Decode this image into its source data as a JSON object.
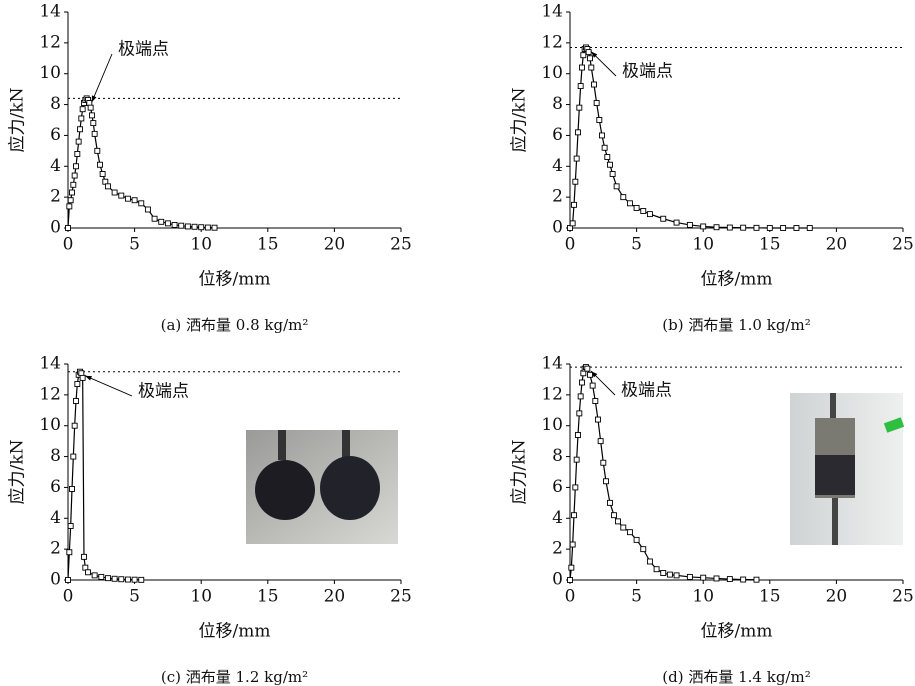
{
  "chart_data": [
    {
      "type": "line",
      "x_label": "位移/mm",
      "y_label": "应力/kN",
      "caption": "(a) 洒布量 0.8 kg/m²",
      "annotation": "极端点",
      "hline": 8.4,
      "color": "#000000",
      "x": [
        0,
        0.1,
        0.2,
        0.3,
        0.4,
        0.5,
        0.6,
        0.7,
        0.8,
        0.9,
        1.0,
        1.1,
        1.2,
        1.3,
        1.4,
        1.5,
        1.6,
        1.7,
        1.8,
        1.9,
        2.0,
        2.2,
        2.4,
        2.6,
        2.8,
        3.0,
        3.5,
        4,
        4.5,
        5,
        5.5,
        6,
        6.5,
        7,
        7.5,
        8,
        8.5,
        9,
        9.5,
        10,
        10.5,
        11
      ],
      "values": [
        0,
        1.4,
        1.8,
        2.3,
        2.8,
        3.4,
        4.0,
        4.8,
        5.6,
        6.4,
        7.1,
        7.7,
        8.1,
        8.3,
        8.4,
        8.3,
        8.1,
        7.8,
        7.3,
        6.8,
        6.1,
        5.0,
        4.1,
        3.5,
        3.0,
        2.7,
        2.3,
        2.1,
        1.9,
        1.8,
        1.6,
        1.2,
        0.6,
        0.4,
        0.3,
        0.2,
        0.15,
        0.1,
        0.08,
        0.05,
        0.03,
        0.02
      ],
      "xlim": [
        0,
        25
      ],
      "ylim": [
        0,
        14
      ],
      "xticks": [
        0,
        5,
        10,
        15,
        20,
        25
      ],
      "yticks": [
        0,
        2,
        4,
        6,
        8,
        10,
        12,
        14
      ]
    },
    {
      "type": "line",
      "x_label": "位移/mm",
      "y_label": "应力/kN",
      "caption": "(b) 洒布量 1.0 kg/m²",
      "annotation": "极端点",
      "hline": 11.7,
      "color": "#000000",
      "x": [
        0,
        0.2,
        0.3,
        0.4,
        0.5,
        0.6,
        0.7,
        0.8,
        0.9,
        1.0,
        1.1,
        1.2,
        1.3,
        1.4,
        1.5,
        1.6,
        1.8,
        2.0,
        2.2,
        2.4,
        2.6,
        2.8,
        3.0,
        3.2,
        3.5,
        4,
        4.5,
        5,
        5.5,
        6,
        7,
        8,
        9,
        10,
        11,
        12,
        13,
        14,
        15,
        16,
        17,
        18
      ],
      "values": [
        0,
        0.3,
        1.5,
        3.0,
        4.5,
        6.2,
        7.8,
        9.2,
        10.4,
        11.2,
        11.6,
        11.7,
        11.6,
        11.4,
        11.0,
        10.4,
        9.3,
        8.1,
        7.0,
        6.0,
        5.2,
        4.6,
        4.1,
        3.5,
        2.7,
        2.0,
        1.6,
        1.3,
        1.1,
        0.9,
        0.6,
        0.35,
        0.2,
        0.1,
        0.05,
        0.03,
        0.02,
        0.01,
        0,
        0,
        0,
        0
      ],
      "xlim": [
        0,
        25
      ],
      "ylim": [
        0,
        14
      ],
      "xticks": [
        0,
        5,
        10,
        15,
        20,
        25
      ],
      "yticks": [
        0,
        2,
        4,
        6,
        8,
        10,
        12,
        14
      ]
    },
    {
      "type": "line",
      "x_label": "位移/mm",
      "y_label": "应力/kN",
      "caption": "(c) 洒布量 1.2 kg/m²",
      "annotation": "极端点",
      "hline": 13.5,
      "color": "#000000",
      "x": [
        0,
        0.1,
        0.2,
        0.3,
        0.4,
        0.5,
        0.6,
        0.7,
        0.8,
        0.9,
        1.0,
        1.1,
        1.2,
        1.3,
        1.5,
        2,
        2.5,
        3,
        3.5,
        4,
        4.5,
        5,
        5.5
      ],
      "values": [
        0,
        1.8,
        3.5,
        5.9,
        8.0,
        10.0,
        11.6,
        12.7,
        13.3,
        13.5,
        13.4,
        13.1,
        1.5,
        0.8,
        0.5,
        0.3,
        0.2,
        0.12,
        0.08,
        0.05,
        0.03,
        0.02,
        0.01
      ],
      "xlim": [
        0,
        25
      ],
      "ylim": [
        0,
        14
      ],
      "xticks": [
        0,
        5,
        10,
        15,
        20,
        25
      ],
      "yticks": [
        0,
        2,
        4,
        6,
        8,
        10,
        12,
        14
      ]
    },
    {
      "type": "line",
      "x_label": "位移/mm",
      "y_label": "应力/kN",
      "caption": "(d) 洒布量 1.4 kg/m²",
      "annotation": "极端点",
      "hline": 13.8,
      "color": "#000000",
      "x": [
        0,
        0.1,
        0.2,
        0.3,
        0.4,
        0.5,
        0.6,
        0.7,
        0.8,
        0.9,
        1.0,
        1.1,
        1.2,
        1.3,
        1.5,
        1.7,
        1.9,
        2.1,
        2.3,
        2.5,
        2.7,
        3.0,
        3.3,
        3.6,
        4.0,
        4.5,
        5,
        5.5,
        6,
        6.5,
        7,
        7.5,
        8,
        9,
        10,
        11,
        12,
        13,
        14
      ],
      "values": [
        0,
        0.8,
        2.3,
        4.2,
        6.0,
        7.8,
        9.4,
        10.8,
        11.9,
        12.8,
        13.4,
        13.7,
        13.8,
        13.7,
        13.3,
        12.6,
        11.6,
        10.4,
        9.0,
        7.6,
        6.4,
        5.0,
        4.2,
        3.8,
        3.4,
        3.1,
        2.6,
        2.0,
        1.2,
        0.7,
        0.45,
        0.35,
        0.3,
        0.2,
        0.15,
        0.1,
        0.06,
        0.03,
        0.02
      ],
      "xlim": [
        0,
        25
      ],
      "ylim": [
        0,
        14
      ],
      "xticks": [
        0,
        5,
        10,
        15,
        20,
        25
      ],
      "yticks": [
        0,
        2,
        4,
        6,
        8,
        10,
        12,
        14
      ]
    }
  ]
}
